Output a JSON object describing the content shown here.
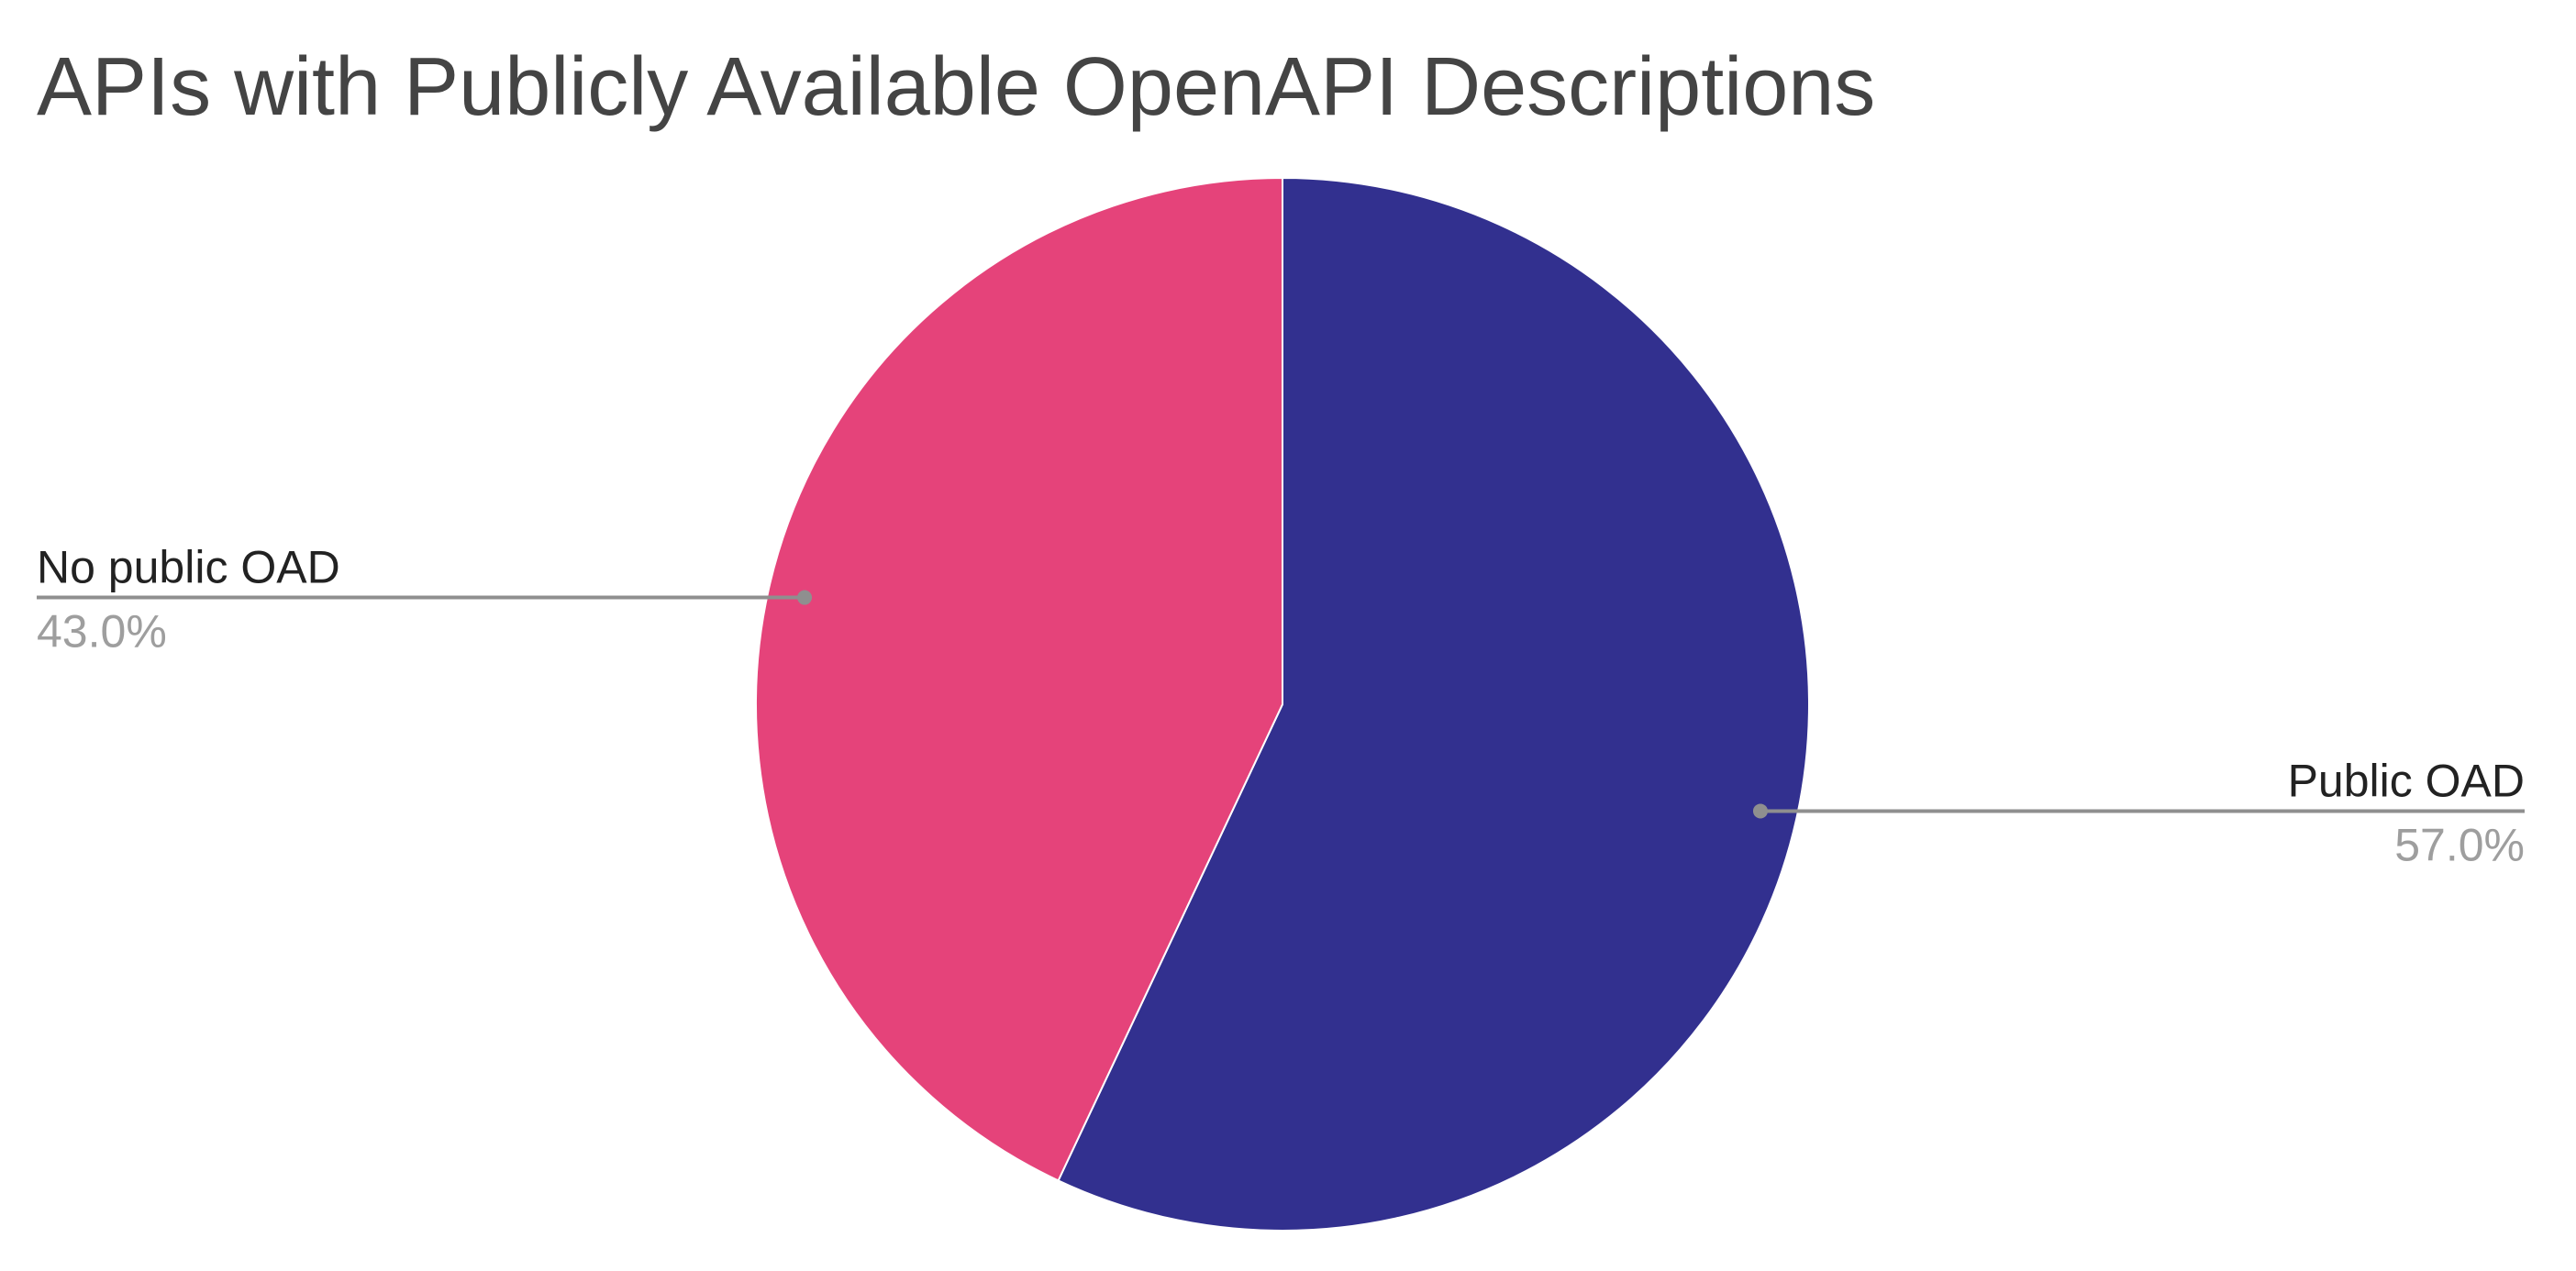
{
  "chart_data": {
    "type": "pie",
    "title": "APIs with Publicly Available OpenAPI Descriptions",
    "start_angle_deg": 0,
    "direction": "clockwise",
    "legend": "labels-outside-with-leader-lines",
    "slices": [
      {
        "label": "Public OAD",
        "value": 57.0,
        "value_label": "57.0%",
        "color": "#32308f",
        "label_side": "right"
      },
      {
        "label": "No public OAD",
        "value": 43.0,
        "value_label": "43.0%",
        "color": "#e5437a",
        "label_side": "left"
      }
    ]
  }
}
